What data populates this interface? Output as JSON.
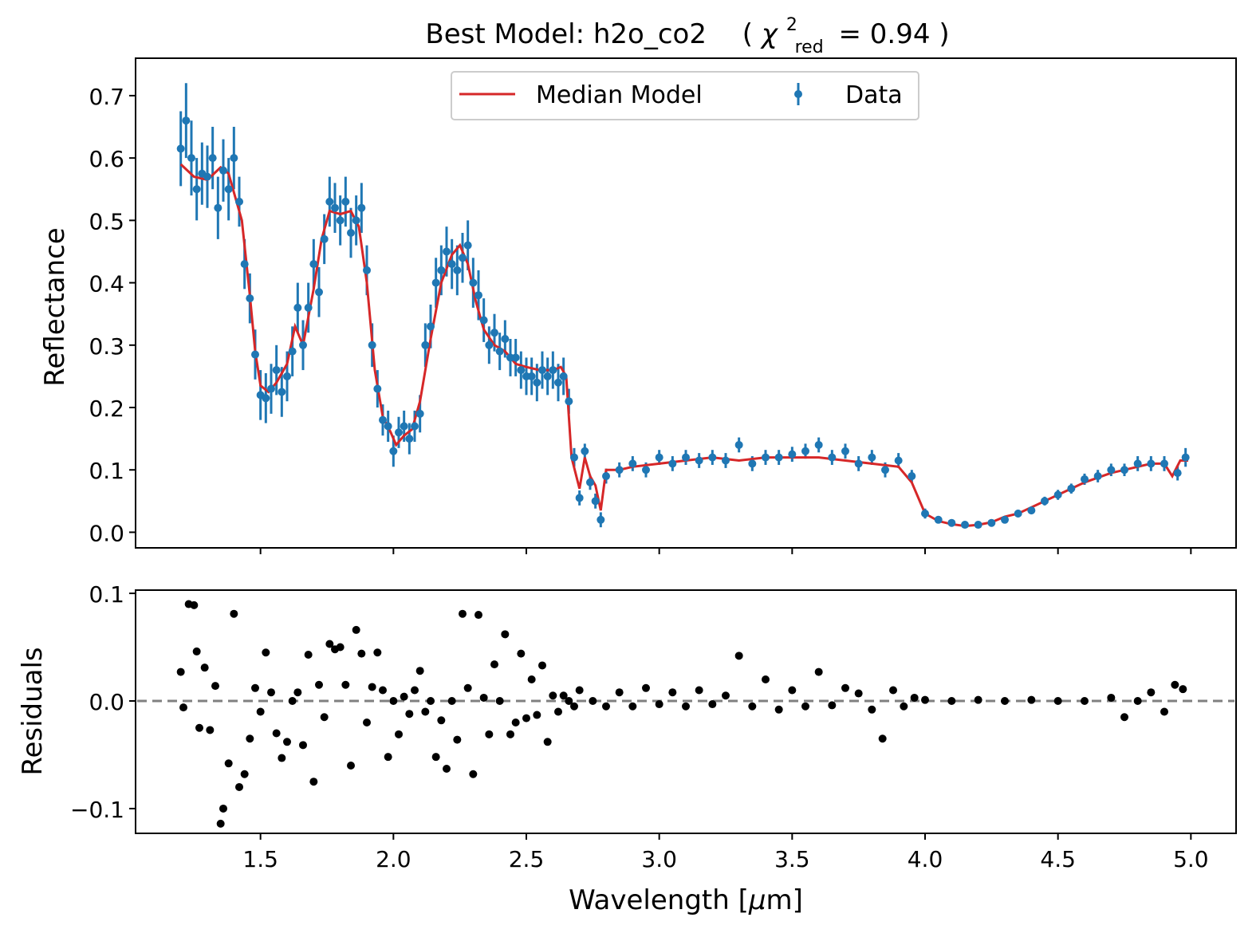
{
  "chart_data": [
    {
      "type": "scatter",
      "title_main": "Best Model: h2o_co2",
      "title_chi": "χ",
      "title_chi_sup": "2",
      "title_chi_sub": "red",
      "title_chi_value": "= 0.94",
      "ylabel": "Reflectance",
      "xlim": [
        1.03,
        5.17
      ],
      "ylim": [
        -0.025,
        0.76
      ],
      "yticks": [
        0.0,
        0.1,
        0.2,
        0.3,
        0.4,
        0.5,
        0.6,
        0.7
      ],
      "ytick_labels": [
        "0.0",
        "0.1",
        "0.2",
        "0.3",
        "0.4",
        "0.5",
        "0.6",
        "0.7"
      ],
      "xticks": [
        1.5,
        2.0,
        2.5,
        3.0,
        3.5,
        4.0,
        4.5,
        5.0
      ],
      "legend": {
        "position": "top-center",
        "model_label": "Median Model",
        "data_label": "Data"
      },
      "colors": {
        "model": "#d62728",
        "data": "#1f77b4"
      },
      "model_curve": {
        "name": "Median Model",
        "x": [
          1.2,
          1.25,
          1.3,
          1.35,
          1.38,
          1.4,
          1.43,
          1.46,
          1.48,
          1.5,
          1.53,
          1.56,
          1.6,
          1.63,
          1.66,
          1.7,
          1.73,
          1.76,
          1.8,
          1.84,
          1.87,
          1.9,
          1.93,
          1.96,
          1.99,
          2.01,
          2.04,
          2.07,
          2.1,
          2.14,
          2.18,
          2.22,
          2.25,
          2.28,
          2.31,
          2.34,
          2.38,
          2.42,
          2.46,
          2.5,
          2.55,
          2.6,
          2.63,
          2.65,
          2.67,
          2.7,
          2.72,
          2.74,
          2.76,
          2.78,
          2.8,
          2.85,
          2.9,
          3.0,
          3.1,
          3.2,
          3.3,
          3.4,
          3.5,
          3.6,
          3.7,
          3.8,
          3.9,
          3.95,
          4.0,
          4.05,
          4.1,
          4.15,
          4.2,
          4.25,
          4.3,
          4.35,
          4.4,
          4.5,
          4.6,
          4.7,
          4.8,
          4.85,
          4.9,
          4.93,
          4.96,
          4.99
        ],
        "y": [
          0.59,
          0.57,
          0.565,
          0.585,
          0.575,
          0.545,
          0.5,
          0.38,
          0.29,
          0.235,
          0.225,
          0.24,
          0.27,
          0.33,
          0.3,
          0.39,
          0.47,
          0.515,
          0.51,
          0.515,
          0.49,
          0.4,
          0.26,
          0.185,
          0.16,
          0.14,
          0.155,
          0.165,
          0.21,
          0.31,
          0.4,
          0.445,
          0.46,
          0.43,
          0.37,
          0.325,
          0.3,
          0.29,
          0.27,
          0.265,
          0.26,
          0.26,
          0.265,
          0.25,
          0.12,
          0.07,
          0.12,
          0.09,
          0.075,
          0.035,
          0.1,
          0.1,
          0.105,
          0.11,
          0.115,
          0.12,
          0.115,
          0.12,
          0.12,
          0.12,
          0.115,
          0.11,
          0.105,
          0.08,
          0.03,
          0.018,
          0.013,
          0.01,
          0.012,
          0.016,
          0.025,
          0.03,
          0.04,
          0.06,
          0.08,
          0.095,
          0.105,
          0.11,
          0.11,
          0.09,
          0.115,
          0.115
        ]
      },
      "data_series": {
        "name": "Data",
        "x": [
          1.2,
          1.22,
          1.24,
          1.26,
          1.28,
          1.3,
          1.32,
          1.34,
          1.36,
          1.38,
          1.4,
          1.42,
          1.44,
          1.46,
          1.48,
          1.5,
          1.52,
          1.54,
          1.56,
          1.58,
          1.6,
          1.62,
          1.64,
          1.66,
          1.68,
          1.7,
          1.72,
          1.74,
          1.76,
          1.78,
          1.8,
          1.82,
          1.84,
          1.86,
          1.88,
          1.9,
          1.92,
          1.94,
          1.96,
          1.98,
          2.0,
          2.02,
          2.04,
          2.06,
          2.08,
          2.1,
          2.12,
          2.14,
          2.16,
          2.18,
          2.2,
          2.22,
          2.24,
          2.26,
          2.28,
          2.3,
          2.32,
          2.34,
          2.36,
          2.38,
          2.4,
          2.42,
          2.44,
          2.46,
          2.48,
          2.5,
          2.52,
          2.54,
          2.56,
          2.58,
          2.6,
          2.62,
          2.64,
          2.66,
          2.68,
          2.7,
          2.72,
          2.74,
          2.76,
          2.78,
          2.8,
          2.85,
          2.9,
          2.95,
          3.0,
          3.05,
          3.1,
          3.15,
          3.2,
          3.25,
          3.3,
          3.35,
          3.4,
          3.45,
          3.5,
          3.55,
          3.6,
          3.65,
          3.7,
          3.75,
          3.8,
          3.85,
          3.9,
          3.95,
          4.0,
          4.05,
          4.1,
          4.15,
          4.2,
          4.25,
          4.3,
          4.35,
          4.4,
          4.45,
          4.5,
          4.55,
          4.6,
          4.65,
          4.7,
          4.75,
          4.8,
          4.85,
          4.9,
          4.95,
          4.98
        ],
        "y": [
          0.615,
          0.66,
          0.6,
          0.55,
          0.575,
          0.57,
          0.6,
          0.52,
          0.58,
          0.55,
          0.6,
          0.53,
          0.43,
          0.375,
          0.285,
          0.22,
          0.215,
          0.23,
          0.26,
          0.225,
          0.25,
          0.29,
          0.36,
          0.3,
          0.36,
          0.43,
          0.385,
          0.47,
          0.53,
          0.52,
          0.5,
          0.53,
          0.48,
          0.5,
          0.52,
          0.42,
          0.3,
          0.23,
          0.18,
          0.17,
          0.13,
          0.16,
          0.17,
          0.15,
          0.17,
          0.19,
          0.3,
          0.33,
          0.4,
          0.42,
          0.45,
          0.43,
          0.42,
          0.44,
          0.46,
          0.4,
          0.38,
          0.34,
          0.3,
          0.32,
          0.29,
          0.31,
          0.28,
          0.28,
          0.26,
          0.25,
          0.25,
          0.24,
          0.26,
          0.25,
          0.26,
          0.24,
          0.25,
          0.21,
          0.12,
          0.055,
          0.13,
          0.08,
          0.05,
          0.02,
          0.09,
          0.1,
          0.11,
          0.1,
          0.12,
          0.11,
          0.12,
          0.115,
          0.12,
          0.115,
          0.14,
          0.11,
          0.12,
          0.12,
          0.125,
          0.13,
          0.14,
          0.12,
          0.13,
          0.11,
          0.12,
          0.1,
          0.115,
          0.09,
          0.03,
          0.02,
          0.015,
          0.012,
          0.012,
          0.015,
          0.02,
          0.03,
          0.035,
          0.05,
          0.06,
          0.07,
          0.085,
          0.09,
          0.1,
          0.1,
          0.11,
          0.11,
          0.11,
          0.095,
          0.12
        ],
        "yerr": [
          0.06,
          0.06,
          0.06,
          0.05,
          0.05,
          0.05,
          0.05,
          0.05,
          0.05,
          0.05,
          0.05,
          0.04,
          0.04,
          0.04,
          0.04,
          0.04,
          0.04,
          0.04,
          0.04,
          0.04,
          0.04,
          0.04,
          0.04,
          0.04,
          0.04,
          0.04,
          0.04,
          0.04,
          0.04,
          0.04,
          0.04,
          0.04,
          0.04,
          0.04,
          0.04,
          0.04,
          0.035,
          0.03,
          0.025,
          0.025,
          0.025,
          0.025,
          0.025,
          0.025,
          0.025,
          0.03,
          0.035,
          0.035,
          0.04,
          0.04,
          0.04,
          0.04,
          0.04,
          0.04,
          0.04,
          0.04,
          0.04,
          0.035,
          0.03,
          0.03,
          0.03,
          0.03,
          0.03,
          0.03,
          0.03,
          0.03,
          0.03,
          0.03,
          0.03,
          0.03,
          0.03,
          0.03,
          0.03,
          0.02,
          0.015,
          0.012,
          0.012,
          0.012,
          0.012,
          0.012,
          0.012,
          0.012,
          0.012,
          0.012,
          0.012,
          0.012,
          0.012,
          0.012,
          0.012,
          0.012,
          0.012,
          0.012,
          0.012,
          0.012,
          0.012,
          0.012,
          0.012,
          0.012,
          0.012,
          0.012,
          0.012,
          0.012,
          0.012,
          0.01,
          0.008,
          0.006,
          0.005,
          0.005,
          0.005,
          0.005,
          0.005,
          0.006,
          0.006,
          0.007,
          0.008,
          0.008,
          0.009,
          0.01,
          0.01,
          0.01,
          0.012,
          0.012,
          0.012,
          0.012,
          0.015
        ]
      }
    },
    {
      "type": "scatter",
      "xlabel_prefix": "Wavelength [",
      "xlabel_mu": "μ",
      "xlabel_suffix": "m]",
      "ylabel": "Residuals",
      "xlim": [
        1.03,
        5.17
      ],
      "ylim": [
        -0.123,
        0.103
      ],
      "yticks": [
        -0.1,
        0.0,
        0.1
      ],
      "ytick_labels": [
        "−0.1",
        "0.0",
        "0.1"
      ],
      "xticks": [
        1.5,
        2.0,
        2.5,
        3.0,
        3.5,
        4.0,
        4.5,
        5.0
      ],
      "xtick_labels": [
        "1.5",
        "2.0",
        "2.5",
        "3.0",
        "3.5",
        "4.0",
        "4.5",
        "5.0"
      ],
      "reference_line": 0.0,
      "colors": {
        "points": "#000000",
        "reference_line": "#808080"
      },
      "residuals": {
        "x": [
          1.2,
          1.21,
          1.23,
          1.25,
          1.26,
          1.27,
          1.29,
          1.31,
          1.33,
          1.35,
          1.36,
          1.38,
          1.4,
          1.42,
          1.44,
          1.46,
          1.48,
          1.5,
          1.52,
          1.54,
          1.56,
          1.58,
          1.6,
          1.62,
          1.64,
          1.66,
          1.68,
          1.7,
          1.72,
          1.74,
          1.76,
          1.78,
          1.8,
          1.82,
          1.84,
          1.86,
          1.88,
          1.9,
          1.92,
          1.94,
          1.96,
          1.98,
          2.0,
          2.02,
          2.04,
          2.06,
          2.08,
          2.1,
          2.12,
          2.14,
          2.16,
          2.18,
          2.2,
          2.22,
          2.24,
          2.26,
          2.28,
          2.3,
          2.32,
          2.34,
          2.36,
          2.38,
          2.4,
          2.42,
          2.44,
          2.46,
          2.48,
          2.5,
          2.52,
          2.54,
          2.56,
          2.58,
          2.6,
          2.62,
          2.64,
          2.66,
          2.68,
          2.7,
          2.75,
          2.8,
          2.85,
          2.9,
          2.95,
          3.0,
          3.05,
          3.1,
          3.15,
          3.2,
          3.25,
          3.3,
          3.35,
          3.4,
          3.45,
          3.5,
          3.55,
          3.6,
          3.65,
          3.7,
          3.75,
          3.8,
          3.84,
          3.88,
          3.92,
          3.96,
          4.0,
          4.1,
          4.2,
          4.3,
          4.4,
          4.5,
          4.6,
          4.7,
          4.75,
          4.8,
          4.85,
          4.9,
          4.94,
          4.97
        ],
        "y": [
          0.027,
          -0.006,
          0.09,
          0.089,
          0.046,
          -0.025,
          0.031,
          -0.027,
          0.014,
          -0.114,
          -0.1,
          -0.058,
          0.081,
          -0.08,
          -0.068,
          -0.035,
          0.012,
          -0.01,
          0.045,
          0.008,
          -0.03,
          -0.053,
          -0.038,
          0.0,
          0.008,
          -0.041,
          0.043,
          -0.075,
          0.015,
          -0.015,
          0.053,
          0.048,
          0.05,
          0.015,
          -0.06,
          0.066,
          0.044,
          -0.02,
          0.013,
          0.045,
          0.01,
          -0.052,
          0.0,
          -0.031,
          0.004,
          -0.012,
          0.01,
          0.028,
          -0.01,
          0.0,
          -0.052,
          -0.018,
          -0.063,
          0.0,
          -0.036,
          0.081,
          0.012,
          -0.068,
          0.08,
          0.003,
          -0.031,
          0.034,
          0.0,
          0.062,
          -0.031,
          -0.02,
          0.044,
          -0.016,
          0.02,
          -0.013,
          0.033,
          -0.038,
          0.005,
          -0.01,
          0.005,
          0.0,
          -0.005,
          0.01,
          0.0,
          -0.005,
          0.008,
          -0.005,
          0.012,
          -0.003,
          0.008,
          -0.005,
          0.01,
          -0.003,
          0.005,
          0.042,
          -0.005,
          0.02,
          -0.008,
          0.01,
          -0.005,
          0.027,
          -0.004,
          0.012,
          0.007,
          -0.008,
          -0.035,
          0.01,
          -0.005,
          0.003,
          0.001,
          0.0,
          0.001,
          0.0,
          0.001,
          0.0,
          0.0,
          0.003,
          -0.015,
          0.0,
          0.008,
          -0.01,
          0.015,
          0.011
        ]
      }
    }
  ]
}
